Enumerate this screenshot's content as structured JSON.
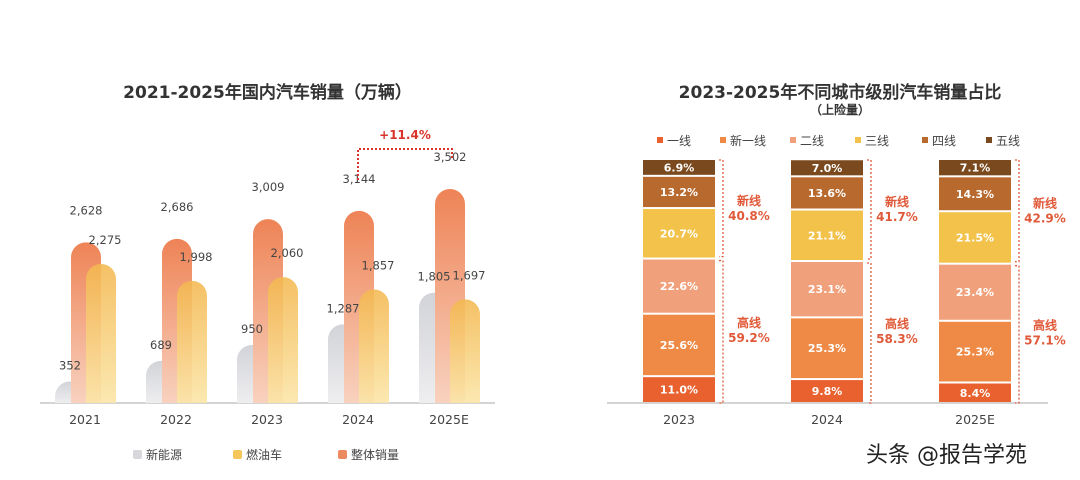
{
  "chart_data": [
    {
      "type": "bar",
      "title": "2021-2025年国内汽车销量（万辆）",
      "categories": [
        "2021",
        "2022",
        "2023",
        "2024",
        "2025E"
      ],
      "series": [
        {
          "name": "新能源",
          "values": [
            352,
            689,
            950,
            1287,
            1805
          ],
          "color": "#d8d8dc"
        },
        {
          "name": "燃油车",
          "values": [
            2275,
            1998,
            2060,
            1857,
            1697
          ],
          "color": "#f5c65a"
        },
        {
          "name": "整体销量",
          "values": [
            2628,
            2686,
            3009,
            3144,
            3502
          ],
          "color": "#ee8a60"
        }
      ],
      "value_labels": {
        "新能源": [
          "352",
          "689",
          "950",
          "1,287",
          "1,805"
        ],
        "燃油车": [
          "2,275",
          "1,998",
          "2,060",
          "1,857",
          "1,697"
        ],
        "整体销量": [
          "2,628",
          "2,686",
          "3,009",
          "3,144",
          "3,502"
        ]
      },
      "annotation": {
        "text": "+11.4%",
        "from": "2024",
        "to": "2025E",
        "color": "#d9342b"
      },
      "legend": "bottom",
      "grid": false
    },
    {
      "type": "bar",
      "stacked": true,
      "title": "2023-2025年不同城市级别汽车销量占比",
      "subtitle": "（上险量）",
      "categories": [
        "2023",
        "2024",
        "2025E"
      ],
      "series": [
        {
          "name": "一线",
          "values": [
            11.0,
            9.8,
            8.4
          ],
          "color": "#e8612e"
        },
        {
          "name": "新一线",
          "values": [
            25.6,
            25.3,
            25.3
          ],
          "color": "#ee8a45"
        },
        {
          "name": "二线",
          "values": [
            22.6,
            23.1,
            23.4
          ],
          "color": "#f0a07a"
        },
        {
          "name": "三线",
          "values": [
            20.7,
            21.1,
            21.5
          ],
          "color": "#f2c24a"
        },
        {
          "name": "四线",
          "values": [
            13.2,
            13.6,
            14.3
          ],
          "color": "#b8692e"
        },
        {
          "name": "五线",
          "values": [
            6.9,
            7.0,
            7.1
          ],
          "color": "#7a4a1e"
        }
      ],
      "groups": [
        {
          "label": "新线",
          "values": [
            "40.8%",
            "41.7%",
            "42.9%"
          ]
        },
        {
          "label": "高线",
          "values": [
            "59.2%",
            "58.3%",
            "57.1%"
          ]
        }
      ],
      "ylim": [
        0,
        100
      ],
      "legend": "top",
      "grid": false
    }
  ],
  "watermark": "头条 @报告学苑"
}
